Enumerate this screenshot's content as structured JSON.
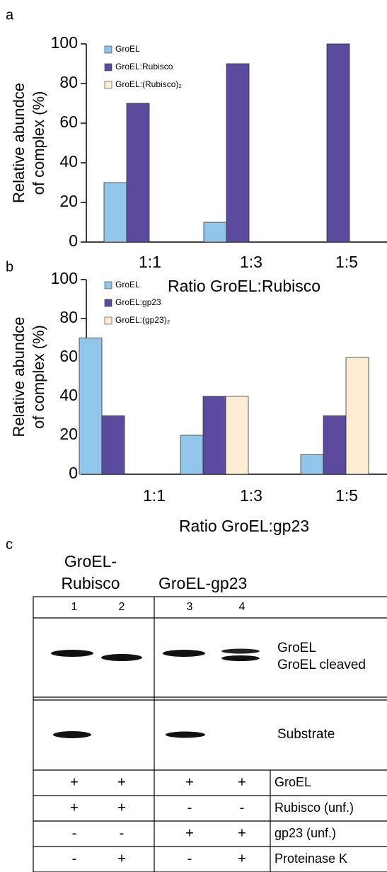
{
  "chart_data": [
    {
      "type": "bar",
      "label": "a",
      "ylabel": [
        "Relative abundce",
        "of complex (%)"
      ],
      "xlabel": "Ratio GroEL:Rubisco",
      "categories": [
        "1:1",
        "1:3",
        "1:5"
      ],
      "series": [
        {
          "name": "GroEL",
          "color": "#92c5ea",
          "values": [
            30,
            10,
            0
          ]
        },
        {
          "name": "GroEL:Rubisco",
          "color": "#5b4a9e",
          "values": [
            70,
            90,
            100
          ]
        },
        {
          "name": "GroEL:(Rubisco)₂",
          "color": "#fdebd3",
          "values": [
            0,
            0,
            0
          ]
        }
      ],
      "ylim": [
        0,
        100
      ],
      "yticks": [
        0,
        20,
        40,
        60,
        80,
        100
      ],
      "grid": false
    },
    {
      "type": "bar",
      "label": "b",
      "ylabel": [
        "Relative abundce",
        "of complex (%)"
      ],
      "xlabel": "Ratio GroEL:gp23",
      "categories": [
        "1:1",
        "1:3",
        "1:5"
      ],
      "series": [
        {
          "name": "GroEL",
          "color": "#92c5ea",
          "values": [
            70,
            20,
            10
          ]
        },
        {
          "name": "GroEL:gp23",
          "color": "#5b4a9e",
          "values": [
            30,
            40,
            30
          ]
        },
        {
          "name": "GroEL:(gp23)₂",
          "color": "#fdebd3",
          "values": [
            0,
            40,
            60
          ]
        }
      ],
      "ylim": [
        0,
        100
      ],
      "yticks": [
        0,
        20,
        40,
        60,
        80,
        100
      ],
      "grid": false
    }
  ],
  "panel_c": {
    "label": "c",
    "group1": [
      "GroEL-",
      "Rubisco"
    ],
    "group2": "GroEL-gp23",
    "lanes": [
      "1",
      "2",
      "3",
      "4"
    ],
    "gel_labels": [
      "GroEL",
      "GroEL cleaved"
    ],
    "substrate_label": "Substrate",
    "rows": [
      {
        "label": "GroEL",
        "cells": [
          "+",
          "+",
          "+",
          "+"
        ]
      },
      {
        "label": "Rubisco (unf.)",
        "cells": [
          "+",
          "+",
          "-",
          "-"
        ]
      },
      {
        "label": "gp23 (unf.)",
        "cells": [
          "-",
          "-",
          "+",
          "+"
        ]
      },
      {
        "label": "Proteinase K",
        "cells": [
          "-",
          "+",
          "-",
          "+"
        ]
      }
    ]
  }
}
